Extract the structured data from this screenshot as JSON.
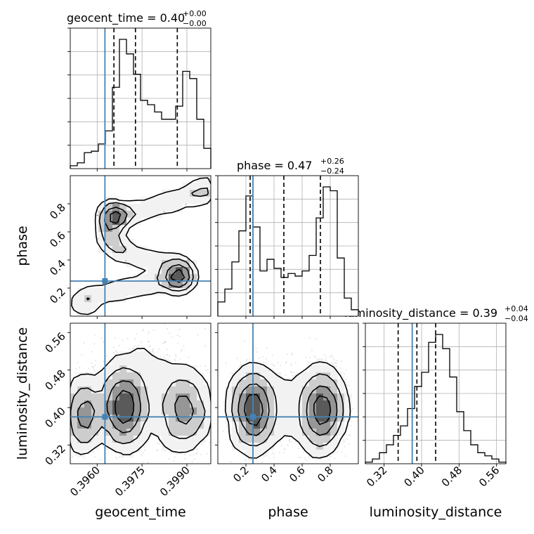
{
  "chart_data": {
    "type": "corner",
    "parameters": [
      {
        "name": "geocent_time",
        "title_prefix": "geocent_time = ",
        "median": "0.40",
        "err_plus": "+0.00",
        "err_minus": "−0.00",
        "range": [
          0.3951,
          0.3998
        ],
        "ticks": [
          0.396,
          0.3975,
          0.399
        ],
        "tick_labels": [
          "0.3960",
          "0.3975",
          "0.3990"
        ],
        "truth": 0.39626,
        "quantiles": [
          0.39656,
          0.39728,
          0.39868
        ],
        "hist": [
          0.02,
          0.04,
          0.11,
          0.12,
          0.17,
          0.26,
          0.56,
          0.89,
          0.79,
          0.65,
          0.47,
          0.44,
          0.39,
          0.34,
          0.34,
          0.43,
          0.67,
          0.62,
          0.34,
          0.14
        ]
      },
      {
        "name": "phase",
        "title_prefix": "phase = ",
        "median": "0.47",
        "err_plus": "+0.26",
        "err_minus": "−0.24",
        "range": [
          0.0,
          1.0
        ],
        "ticks": [
          0.2,
          0.4,
          0.6,
          0.8
        ],
        "tick_labels": [
          "0.2",
          "0.4",
          "0.6",
          "0.8"
        ],
        "truth": 0.25,
        "quantiles": [
          0.23,
          0.47,
          0.73
        ],
        "hist": [
          0.11,
          0.21,
          0.42,
          0.66,
          0.93,
          0.69,
          0.35,
          0.44,
          0.37,
          0.3,
          0.33,
          0.31,
          0.35,
          0.47,
          0.76,
          1.0,
          0.97,
          0.45,
          0.14,
          0.05
        ]
      },
      {
        "name": "luminosity_distance",
        "title_prefix": "luminosity_distance = ",
        "median": "0.39",
        "err_plus": "+0.04",
        "err_minus": "−0.04",
        "range": [
          0.28,
          0.58
        ],
        "ticks": [
          0.32,
          0.4,
          0.48,
          0.56
        ],
        "tick_labels": [
          "0.32",
          "0.40",
          "0.48",
          "0.56"
        ],
        "truth": 0.38,
        "quantiles": [
          0.35,
          0.39,
          0.43
        ],
        "hist": [
          0.01,
          0.03,
          0.07,
          0.12,
          0.18,
          0.24,
          0.35,
          0.49,
          0.58,
          0.77,
          0.82,
          0.73,
          0.55,
          0.33,
          0.21,
          0.12,
          0.07,
          0.05,
          0.03,
          0.01
        ]
      }
    ],
    "truth_color": "#4682b4",
    "quantile_style": "dashed",
    "grid": true,
    "contour_levels": 4,
    "scatter_color": "#808080"
  }
}
